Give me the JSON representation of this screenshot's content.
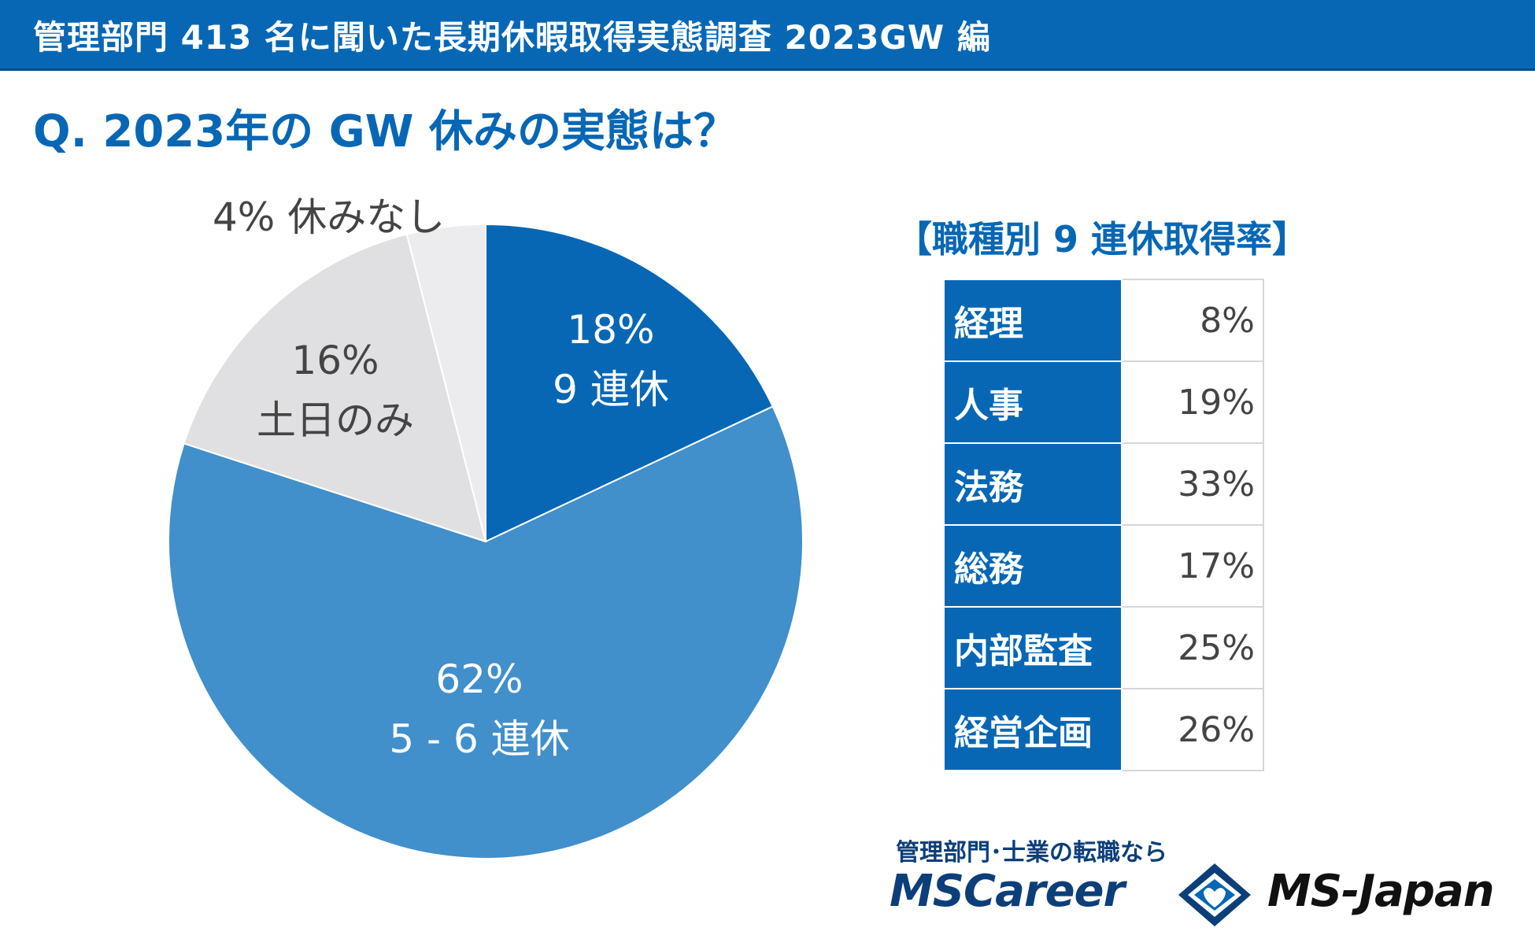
{
  "header": {
    "title": "管理部門 413 名に聞いた長期休暇取得実態調査 2023GW 編"
  },
  "question": "Q. 2023年の GW 休みの実態は？",
  "chart_data": {
    "type": "pie",
    "slices": [
      {
        "pct_label": "18%",
        "name": "9 連休",
        "value": 18,
        "color": "#0767b5",
        "text_color": "#ffffff"
      },
      {
        "pct_label": "62%",
        "name": "5 - 6 連休",
        "value": 62,
        "color": "#418fcb",
        "text_color": "#ffffff"
      },
      {
        "pct_label": "16%",
        "name": "土日のみ",
        "value": 16,
        "color": "#e0e0e3",
        "text_color": "#444444"
      },
      {
        "pct_label": "4%",
        "name": "休みなし",
        "value": 4,
        "color": "#ececee",
        "text_color": "#444444"
      }
    ]
  },
  "table": {
    "title": "【職種別 9 連休取得率】",
    "rows": [
      {
        "dept": "経理",
        "rate": "8%"
      },
      {
        "dept": "人事",
        "rate": "19%"
      },
      {
        "dept": "法務",
        "rate": "33%"
      },
      {
        "dept": "総務",
        "rate": "17%"
      },
      {
        "dept": "内部監査",
        "rate": "25%"
      },
      {
        "dept": "経営企画",
        "rate": "26%"
      }
    ]
  },
  "logo": {
    "tagline": "管理部門･士業の転職なら",
    "brand1": "MSCareer",
    "brand2": "MS-Japan"
  }
}
